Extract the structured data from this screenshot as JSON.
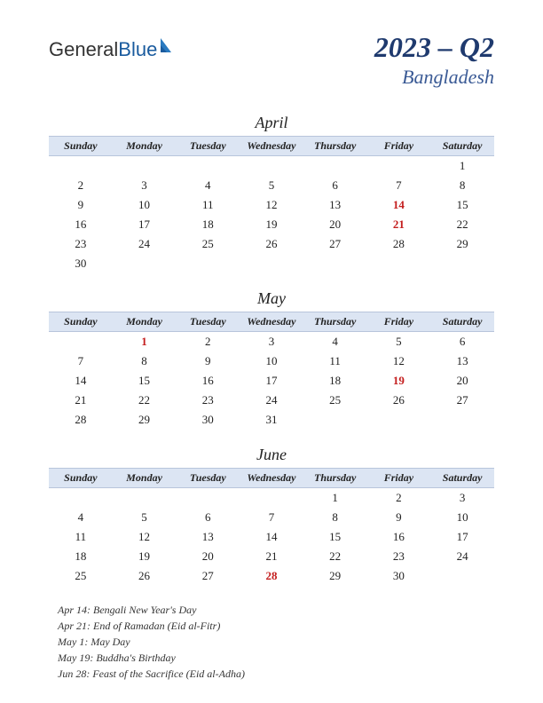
{
  "logo": {
    "part1": "General",
    "part2": "Blue"
  },
  "title": "2023 – Q2",
  "subtitle": "Bangladesh",
  "colors": {
    "header_bg": "#dce5f3",
    "title_color": "#1f3a6e",
    "subtitle_color": "#3a5a95",
    "holiday_color": "#c41e1e",
    "logo_blue": "#1a5b9e"
  },
  "daysOfWeek": [
    "Sunday",
    "Monday",
    "Tuesday",
    "Wednesday",
    "Thursday",
    "Friday",
    "Saturday"
  ],
  "months": [
    {
      "name": "April",
      "weeks": [
        [
          "",
          "",
          "",
          "",
          "",
          "",
          "1"
        ],
        [
          "2",
          "3",
          "4",
          "5",
          "6",
          "7",
          "8"
        ],
        [
          "9",
          "10",
          "11",
          "12",
          "13",
          "14",
          "15"
        ],
        [
          "16",
          "17",
          "18",
          "19",
          "20",
          "21",
          "22"
        ],
        [
          "23",
          "24",
          "25",
          "26",
          "27",
          "28",
          "29"
        ],
        [
          "30",
          "",
          "",
          "",
          "",
          "",
          ""
        ]
      ],
      "holidays": [
        "14",
        "21"
      ]
    },
    {
      "name": "May",
      "weeks": [
        [
          "",
          "1",
          "2",
          "3",
          "4",
          "5",
          "6"
        ],
        [
          "7",
          "8",
          "9",
          "10",
          "11",
          "12",
          "13"
        ],
        [
          "14",
          "15",
          "16",
          "17",
          "18",
          "19",
          "20"
        ],
        [
          "21",
          "22",
          "23",
          "24",
          "25",
          "26",
          "27"
        ],
        [
          "28",
          "29",
          "30",
          "31",
          "",
          "",
          ""
        ]
      ],
      "holidays": [
        "1",
        "19"
      ]
    },
    {
      "name": "June",
      "weeks": [
        [
          "",
          "",
          "",
          "",
          "1",
          "2",
          "3"
        ],
        [
          "4",
          "5",
          "6",
          "7",
          "8",
          "9",
          "10"
        ],
        [
          "11",
          "12",
          "13",
          "14",
          "15",
          "16",
          "17"
        ],
        [
          "18",
          "19",
          "20",
          "21",
          "22",
          "23",
          "24"
        ],
        [
          "25",
          "26",
          "27",
          "28",
          "29",
          "30",
          ""
        ]
      ],
      "holidays": [
        "28"
      ]
    }
  ],
  "holidayList": [
    "Apr 14: Bengali New Year's Day",
    "Apr 21: End of Ramadan (Eid al-Fitr)",
    "May 1: May Day",
    "May 19: Buddha's Birthday",
    "Jun 28: Feast of the Sacrifice (Eid al-Adha)"
  ]
}
